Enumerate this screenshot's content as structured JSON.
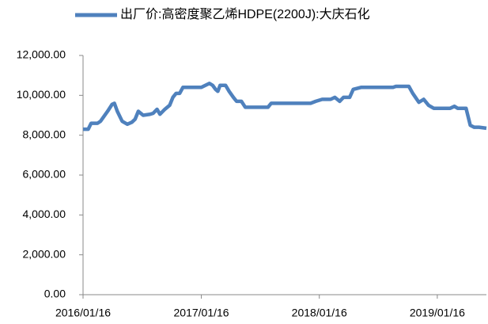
{
  "chart_data": {
    "type": "line",
    "x": [
      "2016/01/16",
      "2016/02/01",
      "2016/02/10",
      "2016/03/01",
      "2016/03/10",
      "2016/04/01",
      "2016/04/15",
      "2016/04/22",
      "2016/05/01",
      "2016/05/16",
      "2016/06/01",
      "2016/06/15",
      "2016/06/25",
      "2016/07/05",
      "2016/07/20",
      "2016/08/10",
      "2016/08/20",
      "2016/09/01",
      "2016/09/10",
      "2016/09/25",
      "2016/10/10",
      "2016/10/20",
      "2016/10/30",
      "2016/11/10",
      "2016/11/20",
      "2017/01/16",
      "2017/02/10",
      "2017/02/20",
      "2017/03/01",
      "2017/03/08",
      "2017/03/15",
      "2017/04/01",
      "2017/04/12",
      "2017/04/25",
      "2017/05/05",
      "2017/05/20",
      "2017/06/01",
      "2017/08/10",
      "2017/08/20",
      "2017/12/20",
      "2018/01/05",
      "2018/01/25",
      "2018/02/20",
      "2018/03/05",
      "2018/03/20",
      "2018/04/01",
      "2018/04/20",
      "2018/05/01",
      "2018/05/25",
      "2018/09/01",
      "2018/09/10",
      "2018/10/20",
      "2018/11/01",
      "2018/11/20",
      "2018/12/05",
      "2018/12/20",
      "2019/01/05",
      "2019/02/25",
      "2019/03/10",
      "2019/03/20",
      "2019/04/15",
      "2019/04/28",
      "2019/05/10",
      "2019/05/25",
      "2019/06/17"
    ],
    "series": [
      {
        "name": "出厂价:高密度聚乙烯HDPE(2200J):大庆石化",
        "color": "#4f81bd",
        "values": [
          8300,
          8300,
          8600,
          8600,
          8700,
          9200,
          9550,
          9600,
          9200,
          8700,
          8550,
          8650,
          8800,
          9200,
          9000,
          9050,
          9100,
          9300,
          9050,
          9300,
          9500,
          9900,
          10100,
          10100,
          10400,
          10400,
          10600,
          10500,
          10300,
          10200,
          10500,
          10500,
          10200,
          9900,
          9700,
          9700,
          9400,
          9400,
          9600,
          9600,
          9700,
          9800,
          9800,
          9900,
          9700,
          9900,
          9900,
          10300,
          10400,
          10400,
          10450,
          10450,
          10100,
          9650,
          9800,
          9500,
          9350,
          9350,
          9450,
          9350,
          9350,
          8500,
          8400,
          8400,
          8350
        ]
      }
    ],
    "xlim": [
      "2016/01/16",
      "2019/06/17"
    ],
    "xticks": [
      "2016/01/16",
      "2017/01/16",
      "2018/01/16",
      "2019/01/16"
    ],
    "ylim": [
      0,
      12000
    ],
    "yticks": [
      {
        "value": 0,
        "label": "0.00"
      },
      {
        "value": 2000,
        "label": "2,000.00"
      },
      {
        "value": 4000,
        "label": "4,000.00"
      },
      {
        "value": 6000,
        "label": "6,000.00"
      },
      {
        "value": 8000,
        "label": "8,000.00"
      },
      {
        "value": 10000,
        "label": "10,000.00"
      },
      {
        "value": 12000,
        "label": "12,000.00"
      }
    ],
    "grid": false,
    "legend": "top"
  }
}
